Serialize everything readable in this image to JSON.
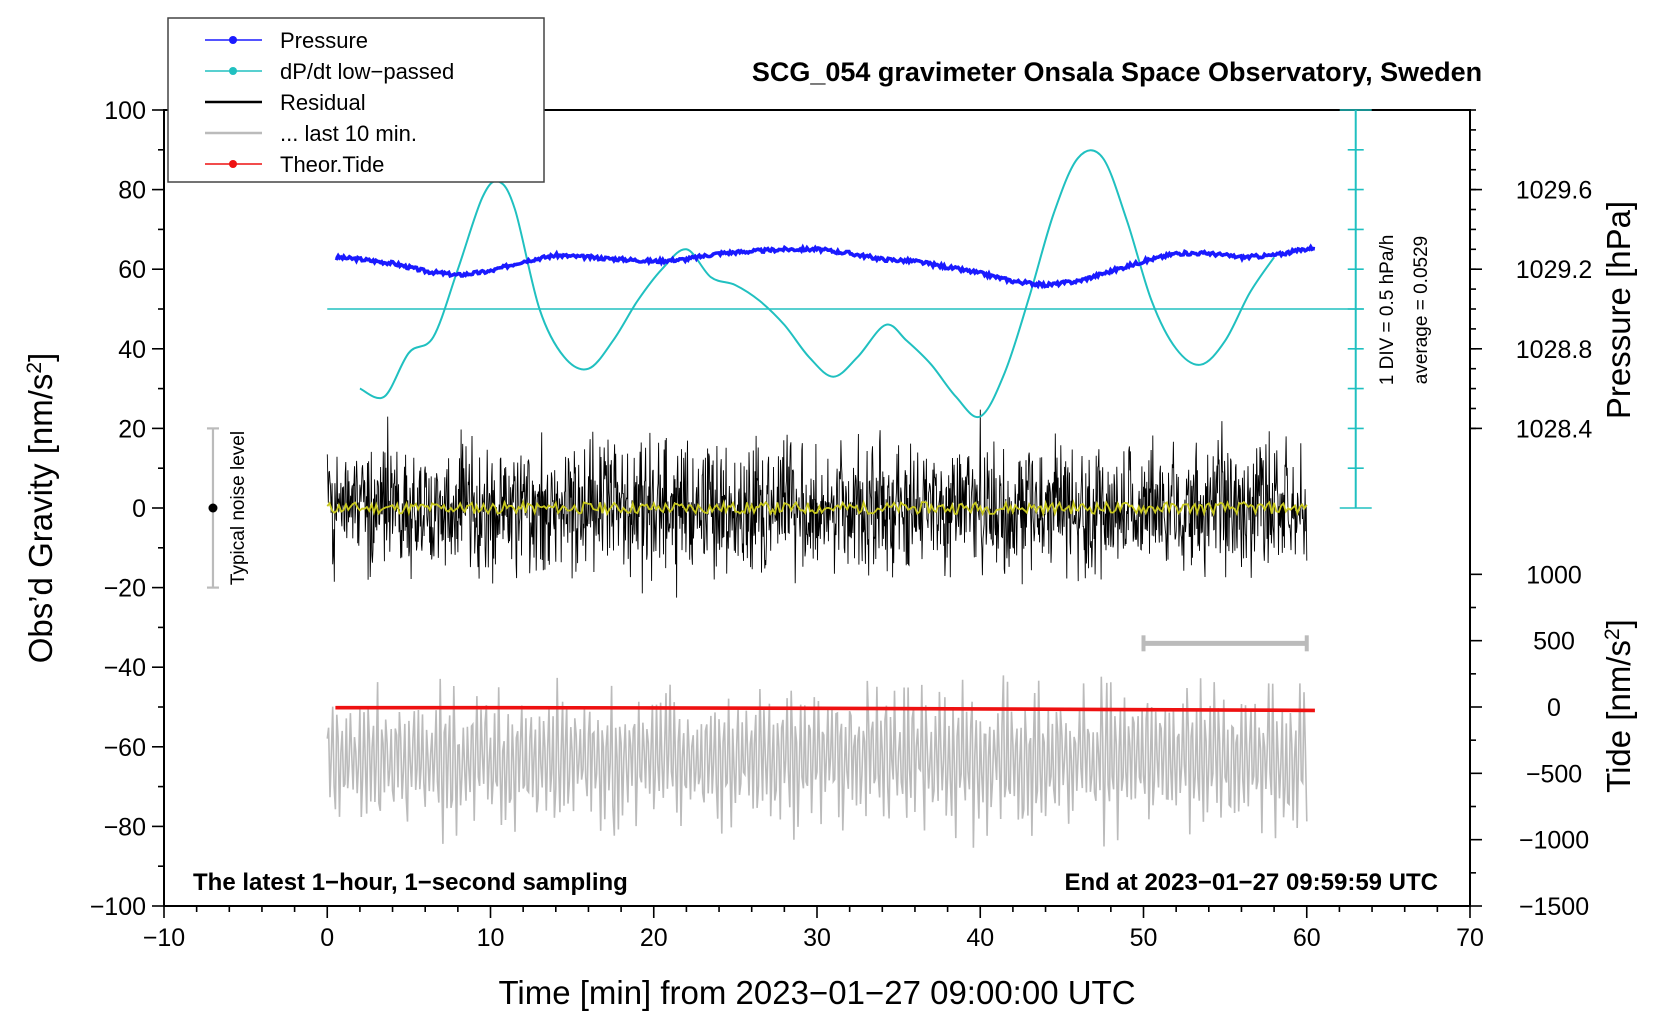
{
  "chart_data": {
    "type": "line",
    "title": "SCG_054 gravimeter Onsala Space Observatory, Sweden",
    "xlabel": "Time [min] from 2023−01−27 09:00:00 UTC",
    "xlim": [
      -10,
      70
    ],
    "x_ticks": [
      -10,
      0,
      10,
      20,
      30,
      40,
      50,
      60,
      70
    ],
    "x_tick_labels": [
      "−10",
      "0",
      "10",
      "20",
      "30",
      "40",
      "50",
      "60",
      "70"
    ],
    "left_axis": {
      "label_main": "Obs’d Gravity [nm/s",
      "label_sup": "2",
      "label_end": "]",
      "ylim": [
        -100,
        100
      ],
      "ticks": [
        -100,
        -80,
        -60,
        -40,
        -20,
        0,
        20,
        40,
        60,
        80,
        100
      ],
      "tick_labels": [
        "−100",
        "−80",
        "−60",
        "−40",
        "−20",
        "0",
        "20",
        "40",
        "60",
        "80",
        "100"
      ]
    },
    "pressure_axis": {
      "label": "Pressure [hPa]",
      "ticks": [
        1028.4,
        1028.8,
        1029.2,
        1029.6
      ],
      "tick_labels": [
        "1028.4",
        "1028.8",
        "1029.2",
        "1029.6"
      ]
    },
    "tide_axis": {
      "label_main": "Tide [nm/s",
      "label_sup": "2",
      "label_end": "]",
      "ticks": [
        -1500,
        -1000,
        -500,
        0,
        500,
        1000
      ],
      "tick_labels": [
        "−1500",
        "−1000",
        "−500",
        "0",
        "500",
        "1000"
      ]
    },
    "legend": [
      {
        "label": "Pressure",
        "color": "#1a1aff",
        "marker": true
      },
      {
        "label": "dP/dt low−passed",
        "color": "#20c0c0",
        "marker": true
      },
      {
        "label": "Residual",
        "color": "#000000",
        "marker": false
      },
      {
        "label": "... last 10 min.",
        "color": "#bbbbbb",
        "marker": false
      },
      {
        "label": "Theor.Tide",
        "color": "#ee1111",
        "marker": true
      }
    ],
    "series": [
      {
        "name": "Pressure",
        "color": "#1a1aff",
        "units": "hPa",
        "x": [
          0.5,
          2,
          4,
          6,
          8,
          10,
          12,
          14,
          16,
          18,
          20,
          22,
          24,
          26,
          28,
          30,
          32,
          34,
          36,
          38,
          40,
          42,
          44,
          46,
          48,
          50,
          52,
          54,
          56,
          58,
          60.5
        ],
        "values": [
          1029.26,
          1029.25,
          1029.23,
          1029.19,
          1029.17,
          1029.19,
          1029.24,
          1029.27,
          1029.26,
          1029.25,
          1029.24,
          1029.25,
          1029.28,
          1029.29,
          1029.3,
          1029.3,
          1029.28,
          1029.25,
          1029.24,
          1029.21,
          1029.18,
          1029.14,
          1029.12,
          1029.14,
          1029.19,
          1029.24,
          1029.28,
          1029.28,
          1029.26,
          1029.27,
          1029.31
        ]
      },
      {
        "name": "dP/dt low−passed",
        "color": "#20c0c0",
        "units": "nm/s² plot scale",
        "x": [
          2,
          3.5,
          5,
          6.5,
          8,
          9.5,
          10.5,
          11.5,
          13,
          14.5,
          16,
          17.5,
          19,
          20.5,
          22,
          23.5,
          25,
          26.5,
          28,
          29.5,
          31,
          32.5,
          34.2,
          35.5,
          37,
          38.5,
          40,
          41.5,
          43,
          44.5,
          46,
          47.5,
          49,
          50.5,
          52,
          53.5,
          55,
          56.5,
          58
        ],
        "values": [
          30,
          28,
          39,
          43,
          60,
          78,
          82,
          75,
          50,
          38,
          35,
          42,
          52,
          60,
          65,
          58,
          56,
          52,
          46,
          38,
          33,
          38,
          46,
          42,
          36,
          28,
          23,
          34,
          53,
          74,
          88,
          88,
          72,
          52,
          40,
          36,
          42,
          54,
          63
        ]
      },
      {
        "name": "Residual",
        "color": "#000000",
        "units": "nm/s²",
        "x_range": [
          0,
          60
        ],
        "envelope": 20,
        "peak_min": -25,
        "peak_max": 25
      },
      {
        "name": "Residual smoothed",
        "color": "#c8c81e",
        "units": "nm/s²",
        "x_range": [
          0,
          60
        ],
        "center": 0
      },
      {
        "name": "... last 10 min.",
        "color": "#bbbbbb",
        "units": "nm/s² plot scale",
        "x_range": [
          0,
          60
        ],
        "range_low": -87,
        "range_high": -39
      },
      {
        "name": "Theor.Tide",
        "color": "#ee1111",
        "units": "nm/s² (tide)",
        "x": [
          0.5,
          10,
          20,
          30,
          40,
          50,
          60.5
        ],
        "values": [
          -5,
          -5,
          -7,
          -10,
          -14,
          -20,
          -26
        ]
      }
    ],
    "dpdt_zero_line": 50,
    "dpdt_scale_bar": {
      "x": 63,
      "from": 0,
      "to": 100,
      "division_step": 10
    },
    "last10_bar": {
      "x_from": 50,
      "x_to": 60,
      "y": -34
    },
    "noise_level": {
      "x": -7,
      "center": 0,
      "half_range": 20
    },
    "annotations": {
      "div_text": "1 DIV = 0.5 hPa/h",
      "average_text": "average = 0.0529",
      "noise_text": "Typical noise level",
      "footer_left": "The latest 1−hour, 1−second sampling",
      "footer_right": "End at 2023−01−27 09:59:59 UTC"
    }
  }
}
